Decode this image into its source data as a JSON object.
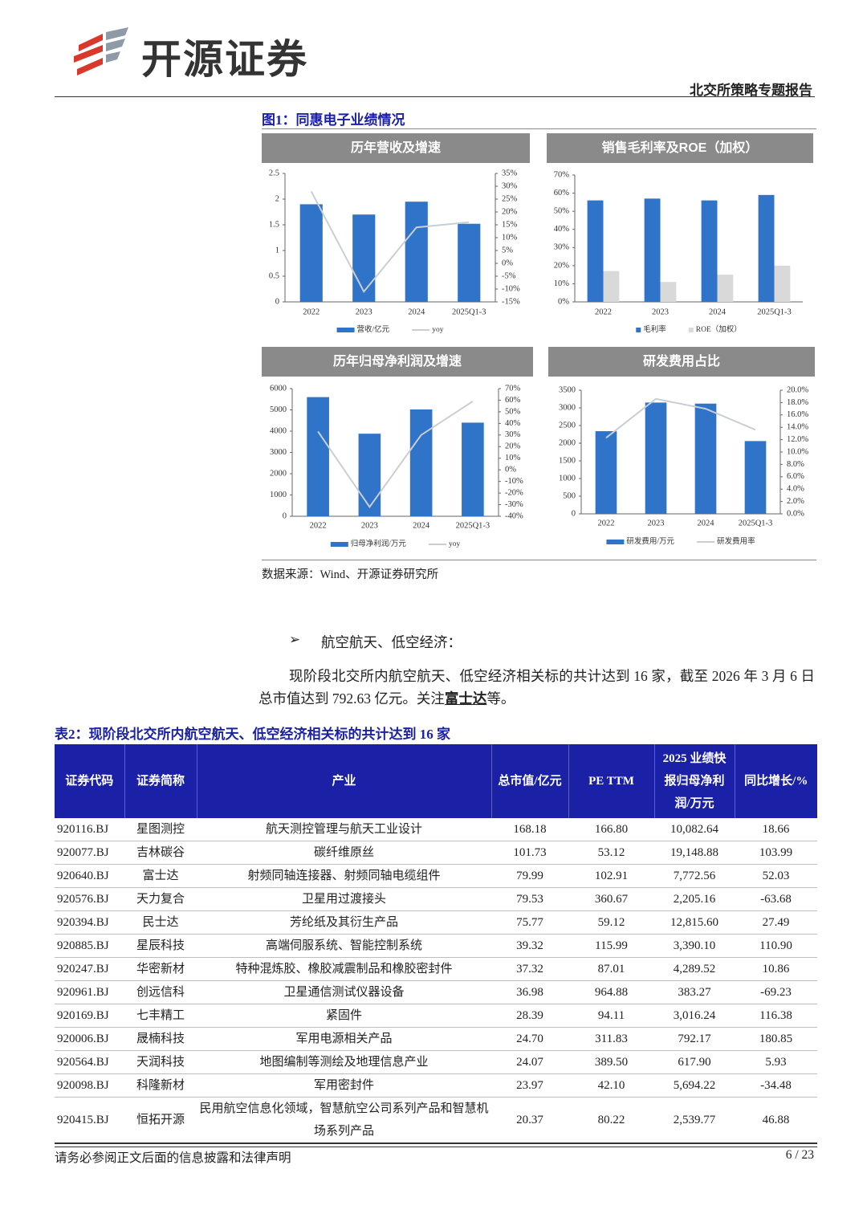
{
  "header": {
    "brand": "开源证券",
    "report_type": "北交所策略专题报告"
  },
  "figure": {
    "title": "图1：同惠电子业绩情况",
    "source": "数据来源：Wind、开源证券研究所"
  },
  "chart_data": [
    {
      "type": "bar",
      "title": "历年营收及增速",
      "categories": [
        "2022",
        "2023",
        "2024",
        "2025Q1-3"
      ],
      "series": [
        {
          "name": "营收/亿元",
          "color": "#2f74c8",
          "values": [
            1.9,
            1.7,
            1.95,
            1.52
          ]
        },
        {
          "name": "yoy",
          "color": "#c9ced6",
          "values": [
            28,
            -11,
            14,
            16
          ],
          "axis": "y2"
        }
      ],
      "ylim": [
        0,
        2.5
      ],
      "yticks": [
        0,
        0.5,
        1,
        1.5,
        2,
        2.5
      ],
      "y2lim": [
        -15,
        35
      ],
      "y2ticks": [
        {
          "value": -15,
          "label": "-15%"
        },
        {
          "value": -10,
          "label": "-10%"
        },
        {
          "value": -5,
          "label": "-5%"
        },
        {
          "value": 0,
          "label": "0%"
        },
        {
          "value": 5,
          "label": "5%"
        },
        {
          "value": 10,
          "label": "10%"
        },
        {
          "value": 15,
          "label": "15%"
        },
        {
          "value": 20,
          "label": "20%"
        },
        {
          "value": 25,
          "label": "25%"
        },
        {
          "value": 30,
          "label": "30%"
        },
        {
          "value": 35,
          "label": "35%"
        }
      ]
    },
    {
      "type": "bar",
      "title": "销售毛利率及ROE（加权）",
      "categories": [
        "2022",
        "2023",
        "2024",
        "2025Q1-3"
      ],
      "series": [
        {
          "name": "毛利率",
          "color": "#2f74c8",
          "values": [
            56,
            57,
            56,
            59
          ]
        },
        {
          "name": "ROE（加权）",
          "color": "#d9d9d9",
          "values": [
            17,
            11,
            15,
            20
          ]
        }
      ],
      "ylim": [
        0,
        70
      ],
      "yticks": [
        {
          "value": 0,
          "label": "0%"
        },
        {
          "value": 10,
          "label": "10%"
        },
        {
          "value": 20,
          "label": "20%"
        },
        {
          "value": 30,
          "label": "30%"
        },
        {
          "value": 40,
          "label": "40%"
        },
        {
          "value": 50,
          "label": "50%"
        },
        {
          "value": 60,
          "label": "60%"
        },
        {
          "value": 70,
          "label": "70%"
        }
      ]
    },
    {
      "type": "bar",
      "title": "历年归母净利润及增速",
      "categories": [
        "2022",
        "2023",
        "2024",
        "2025Q1-3"
      ],
      "series": [
        {
          "name": "归母净利润/万元",
          "color": "#2f74c8",
          "values": [
            5600,
            3880,
            5020,
            4400
          ]
        },
        {
          "name": "yoy",
          "color": "#c9ced6",
          "values": [
            33,
            -32,
            30,
            59
          ],
          "axis": "y2"
        }
      ],
      "ylim": [
        0,
        6000
      ],
      "yticks": [
        0,
        1000,
        2000,
        3000,
        4000,
        5000,
        6000
      ],
      "y2lim": [
        -40,
        70
      ],
      "y2ticks": [
        {
          "value": -40,
          "label": "-40%"
        },
        {
          "value": -30,
          "label": "-30%"
        },
        {
          "value": -20,
          "label": "-20%"
        },
        {
          "value": -10,
          "label": "-10%"
        },
        {
          "value": 0,
          "label": "0%"
        },
        {
          "value": 10,
          "label": "10%"
        },
        {
          "value": 20,
          "label": "20%"
        },
        {
          "value": 30,
          "label": "30%"
        },
        {
          "value": 40,
          "label": "40%"
        },
        {
          "value": 50,
          "label": "50%"
        },
        {
          "value": 60,
          "label": "60%"
        },
        {
          "value": 70,
          "label": "70%"
        }
      ]
    },
    {
      "type": "bar",
      "title": "研发费用占比",
      "categories": [
        "2022",
        "2023",
        "2024",
        "2025Q1-3"
      ],
      "series": [
        {
          "name": "研发费用/万元",
          "color": "#2f74c8",
          "values": [
            2340,
            3150,
            3120,
            2060
          ]
        },
        {
          "name": "研发费用率",
          "color": "#c9ced6",
          "values": [
            12.3,
            18.6,
            17,
            13.6
          ],
          "axis": "y2"
        }
      ],
      "ylim": [
        0,
        3500
      ],
      "yticks": [
        0,
        500,
        1000,
        1500,
        2000,
        2500,
        3000,
        3500
      ],
      "y2lim": [
        0,
        20
      ],
      "y2ticks": [
        {
          "value": 0,
          "label": "0.0%"
        },
        {
          "value": 2,
          "label": "2.0%"
        },
        {
          "value": 4,
          "label": "4.0%"
        },
        {
          "value": 6,
          "label": "6.0%"
        },
        {
          "value": 8,
          "label": "8.0%"
        },
        {
          "value": 10,
          "label": "10.0%"
        },
        {
          "value": 12,
          "label": "12.0%"
        },
        {
          "value": 14,
          "label": "14.0%"
        },
        {
          "value": 16,
          "label": "16.0%"
        },
        {
          "value": 18,
          "label": "18.0%"
        },
        {
          "value": 20,
          "label": "20.0%"
        }
      ]
    }
  ],
  "section": {
    "bullet": "航空航天、低空经济：",
    "paragraph": [
      "现阶段北交所内航空航天、低空经济相关标的共计达到 16 家，截至 2026 年 3 月 6 日总市值达到 792.63 亿元。关注",
      "富士达",
      "等。"
    ]
  },
  "table": {
    "title": "表2：现阶段北交所内航空航天、低空经济相关标的共计达到 16 家",
    "columns": [
      "证券代码",
      "证券简称",
      "产业",
      "总市值/亿元",
      "PE TTM",
      "2025 业绩快报归母净利润/万元",
      "同比增长/%"
    ],
    "rows": [
      [
        "920116.BJ",
        "星图测控",
        "航天测控管理与航天工业设计",
        "168.18",
        "166.80",
        "10,082.64",
        "18.66"
      ],
      [
        "920077.BJ",
        "吉林碳谷",
        "碳纤维原丝",
        "101.73",
        "53.12",
        "19,148.88",
        "103.99"
      ],
      [
        "920640.BJ",
        "富士达",
        "射频同轴连接器、射频同轴电缆组件",
        "79.99",
        "102.91",
        "7,772.56",
        "52.03"
      ],
      [
        "920576.BJ",
        "天力复合",
        "卫星用过渡接头",
        "79.53",
        "360.67",
        "2,205.16",
        "-63.68"
      ],
      [
        "920394.BJ",
        "民士达",
        "芳纶纸及其衍生产品",
        "75.77",
        "59.12",
        "12,815.60",
        "27.49"
      ],
      [
        "920885.BJ",
        "星辰科技",
        "高端伺服系统、智能控制系统",
        "39.32",
        "115.99",
        "3,390.10",
        "110.90"
      ],
      [
        "920247.BJ",
        "华密新材",
        "特种混炼胶、橡胶减震制品和橡胶密封件",
        "37.32",
        "87.01",
        "4,289.52",
        "10.86"
      ],
      [
        "920961.BJ",
        "创远信科",
        "卫星通信测试仪器设备",
        "36.98",
        "964.88",
        "383.27",
        "-69.23"
      ],
      [
        "920169.BJ",
        "七丰精工",
        "紧固件",
        "28.39",
        "94.11",
        "3,016.24",
        "116.38"
      ],
      [
        "920006.BJ",
        "晟楠科技",
        "军用电源相关产品",
        "24.70",
        "311.83",
        "792.17",
        "180.85"
      ],
      [
        "920564.BJ",
        "天润科技",
        "地图编制等测绘及地理信息产业",
        "24.07",
        "389.50",
        "617.90",
        "5.93"
      ],
      [
        "920098.BJ",
        "科隆新材",
        "军用密封件",
        "23.97",
        "42.10",
        "5,694.22",
        "-34.48"
      ],
      [
        "920415.BJ",
        "恒拓开源",
        "民用航空信息化领域，智慧航空公司系列产品和智慧机场系列产品",
        "20.37",
        "80.22",
        "2,539.77",
        "46.88"
      ]
    ]
  },
  "footer": {
    "disclaimer": "请务必参阅正文后面的信息披露和法律声明",
    "page": "6 / 23"
  }
}
